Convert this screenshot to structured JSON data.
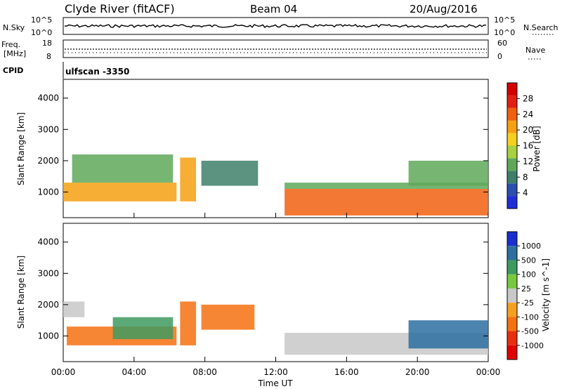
{
  "header": {
    "station": "Clyde River (fitACF)",
    "beam": "Beam 04",
    "date": "20/Aug/2016"
  },
  "nsky_panel": {
    "left_label": "N.Sky",
    "right_label": "N.Search",
    "tick_top": "10^5",
    "tick_bottom": "10^0",
    "right_tick_top": "10^5",
    "right_tick_bottom": "10^0"
  },
  "freq_panel": {
    "left_label_line1": "Freq.",
    "left_label_line2": "[MHz]",
    "right_label": "Nave",
    "tick_top": "18",
    "tick_bottom": "8",
    "right_tick_top": "60",
    "right_tick_bottom": "0"
  },
  "cpid": {
    "label": "CPID",
    "value": "ulfscan -3350"
  },
  "chart_data": [
    {
      "type": "heatmap",
      "title": "Power",
      "ylabel": "Slant Range [km]",
      "xlabel": "",
      "x_range": [
        0,
        24
      ],
      "ylim": [
        180,
        4600
      ],
      "y_ticks": [
        "1000",
        "2000",
        "3000",
        "4000"
      ],
      "colorbar": {
        "label": "Power [dB]",
        "ticks": [
          "4",
          "8",
          "12",
          "16",
          "20",
          "24",
          "28"
        ],
        "range": [
          0,
          32
        ],
        "colors": [
          "#1f2fd8",
          "#2b4fb0",
          "#3e7f6a",
          "#5fa85a",
          "#a8d040",
          "#f5d020",
          "#f5a010",
          "#f06010",
          "#e02010",
          "#d40000"
        ]
      },
      "regions": [
        {
          "x": [
            0.0,
            6.4
          ],
          "y": [
            700,
            1300
          ],
          "power": 22
        },
        {
          "x": [
            0.5,
            6.2
          ],
          "y": [
            1300,
            2200
          ],
          "power": 10
        },
        {
          "x": [
            6.6,
            7.5
          ],
          "y": [
            700,
            2100
          ],
          "power": 20
        },
        {
          "x": [
            7.8,
            11.0
          ],
          "y": [
            1200,
            2000
          ],
          "power": 8
        },
        {
          "x": [
            12.5,
            24.0
          ],
          "y": [
            250,
            1100
          ],
          "power": 24
        },
        {
          "x": [
            12.5,
            24.0
          ],
          "y": [
            1100,
            1300
          ],
          "power": 10
        },
        {
          "x": [
            19.5,
            24.0
          ],
          "y": [
            1200,
            2000
          ],
          "power": 12
        }
      ]
    },
    {
      "type": "heatmap",
      "title": "Velocity",
      "ylabel": "Slant Range [km]",
      "xlabel": "Time UT",
      "x_ticks": [
        "00:00",
        "04:00",
        "08:00",
        "12:00",
        "16:00",
        "20:00",
        "00:00"
      ],
      "x_range": [
        0,
        24
      ],
      "ylim": [
        180,
        4600
      ],
      "y_ticks": [
        "1000",
        "2000",
        "3000",
        "4000"
      ],
      "colorbar": {
        "label": "Velocity [m s^-1]",
        "ticks": [
          "1000",
          "500",
          "100",
          "25",
          "-25",
          "-100",
          "-500",
          "-1000"
        ],
        "colors": [
          "#1a2fd0",
          "#2c6fa0",
          "#3f9a60",
          "#78c840",
          "#c8c8c8",
          "#f5a020",
          "#f57010",
          "#e83010",
          "#e00000"
        ]
      },
      "regions": [
        {
          "x": [
            0.2,
            6.4
          ],
          "y": [
            700,
            1300
          ],
          "velocity": -100
        },
        {
          "x": [
            0.0,
            1.2
          ],
          "y": [
            1600,
            2100
          ],
          "velocity": 0
        },
        {
          "x": [
            2.8,
            6.2
          ],
          "y": [
            900,
            1600
          ],
          "velocity": 300
        },
        {
          "x": [
            6.6,
            7.5
          ],
          "y": [
            700,
            2100
          ],
          "velocity": -200
        },
        {
          "x": [
            7.8,
            10.8
          ],
          "y": [
            1200,
            2000
          ],
          "velocity": -150
        },
        {
          "x": [
            12.5,
            24.0
          ],
          "y": [
            400,
            1100
          ],
          "velocity": 0
        },
        {
          "x": [
            19.5,
            24.0
          ],
          "y": [
            600,
            1500
          ],
          "velocity": 400
        }
      ]
    }
  ]
}
